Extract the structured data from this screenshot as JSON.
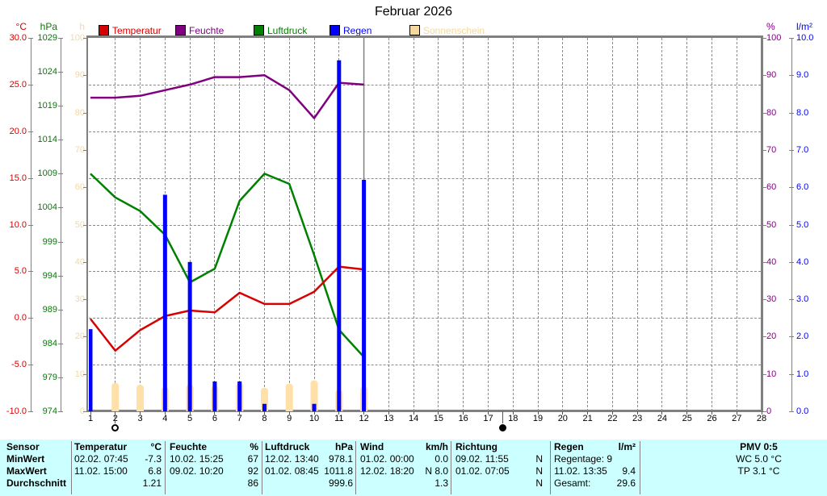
{
  "title": "Februar 2026",
  "legend": [
    {
      "label": "Temperatur",
      "color": "#d80000"
    },
    {
      "label": "Feuchte",
      "color": "#800080"
    },
    {
      "label": "Luftdruck",
      "color": "#008000"
    },
    {
      "label": "Regen",
      "color": "#0000ff"
    },
    {
      "label": "Sonnenschein",
      "color": "#f3d9a0"
    }
  ],
  "axes": {
    "temperature": {
      "header": "°C",
      "color": "#d80000",
      "ticks": [
        "30.0",
        "25.0",
        "20.0",
        "15.0",
        "10.0",
        "5.0",
        "0.0",
        "-5.0",
        "-10.0"
      ]
    },
    "pressure": {
      "header": "hPa",
      "color": "#008000",
      "ticks": [
        "1029",
        "1024",
        "1019",
        "1014",
        "1009",
        "1004",
        "999",
        "994",
        "989",
        "984",
        "979",
        "974"
      ]
    },
    "sunshine": {
      "header": "h",
      "color": "#f3d9a0",
      "ticks": [
        "100",
        "90",
        "80",
        "70",
        "60",
        "50",
        "40",
        "30",
        "20",
        "10",
        "0"
      ]
    },
    "humidity": {
      "header": "%",
      "color": "#800080",
      "ticks": [
        "100",
        "90",
        "80",
        "70",
        "60",
        "50",
        "40",
        "30",
        "20",
        "10",
        "0"
      ]
    },
    "rain": {
      "header": "l/m²",
      "color": "#0000ff",
      "ticks": [
        "10.0",
        "9.0",
        "8.0",
        "7.0",
        "6.0",
        "5.0",
        "4.0",
        "3.0",
        "2.0",
        "1.0",
        "0.0"
      ]
    }
  },
  "x_axis": {
    "days": [
      "1",
      "2",
      "3",
      "4",
      "5",
      "6",
      "7",
      "8",
      "9",
      "10",
      "11",
      "12",
      "13",
      "14",
      "15",
      "16",
      "17",
      "18",
      "19",
      "20",
      "21",
      "22",
      "23",
      "24",
      "25",
      "26",
      "27",
      "28"
    ]
  },
  "moon_markers": [
    {
      "day": 2,
      "phase": "full-moon"
    },
    {
      "day": 17.6,
      "phase": "new-moon"
    }
  ],
  "chart_data": {
    "type": "line+bar",
    "title": "Februar 2026",
    "x_range": [
      1,
      28
    ],
    "days_with_data": [
      1,
      2,
      3,
      4,
      5,
      6,
      7,
      8,
      9,
      10,
      11,
      12
    ],
    "current_day_marker": 12,
    "grid": {
      "horizontal_lines_celsius": [
        25,
        20,
        15,
        10,
        5,
        0,
        -5
      ],
      "vertical_lines": "every day",
      "style": "dashed gray"
    },
    "series": [
      {
        "name": "Sonnenschein",
        "type": "bar",
        "unit": "h",
        "color": "#ffe0a8",
        "axis_min": 0,
        "axis_max": 100,
        "values": [
          0,
          7.6,
          7.1,
          6.5,
          7.2,
          6.8,
          7.6,
          6.3,
          7.4,
          8.3,
          5.8,
          6.6
        ]
      },
      {
        "name": "Luftdruck",
        "type": "line",
        "unit": "hPa",
        "color": "#008000",
        "axis_min": 974,
        "axis_max": 1029,
        "values": [
          1009,
          1005.5,
          1003.5,
          1000,
          993,
          995,
          1005,
          1009,
          1007.5,
          997,
          986,
          982
        ]
      },
      {
        "name": "Feuchte",
        "type": "line",
        "unit": "%",
        "color": "#800080",
        "axis_min": 0,
        "axis_max": 100,
        "values": [
          84,
          84,
          84.5,
          86,
          87.5,
          89.5,
          89.5,
          90,
          86,
          78.5,
          88,
          87.5
        ]
      },
      {
        "name": "Temperatur",
        "type": "line",
        "unit": "°C",
        "color": "#d80000",
        "axis_min": -10,
        "axis_max": 30,
        "values": [
          -0.1,
          -3.5,
          -1.3,
          0.2,
          0.8,
          0.6,
          2.7,
          1.5,
          1.5,
          2.8,
          5.5,
          5.2
        ]
      },
      {
        "name": "Regen",
        "type": "bar",
        "unit": "l/m²",
        "color": "#0000ff",
        "axis_min": 0,
        "axis_max": 10,
        "values": [
          2.2,
          0,
          0,
          5.8,
          4.0,
          0.8,
          0.8,
          0.2,
          0,
          0.2,
          9.4,
          6.2
        ]
      }
    ]
  },
  "table": {
    "background": "#ccffff",
    "row_headers": [
      "Sensor",
      "MinWert",
      "MaxWert",
      "Durchschnitt"
    ],
    "columns": [
      {
        "name": "Temperatur",
        "unit": "°C",
        "rows": [
          {
            "left": "02.02.  07:45",
            "right": "-7.3"
          },
          {
            "left": "11.02.  15:00",
            "right": "6.8"
          },
          {
            "left": "",
            "right": "1.21"
          }
        ]
      },
      {
        "name": "Feuchte",
        "unit": "%",
        "rows": [
          {
            "left": "10.02.  15:25",
            "right": "67"
          },
          {
            "left": "09.02.  10:20",
            "right": "92"
          },
          {
            "left": "",
            "right": "86"
          }
        ]
      },
      {
        "name": "Luftdruck",
        "unit": "hPa",
        "rows": [
          {
            "left": "12.02.  13:40",
            "right": "978.1"
          },
          {
            "left": "01.02.  08:45",
            "right": "1011.8"
          },
          {
            "left": "",
            "right": "999.6"
          }
        ]
      },
      {
        "name": "Wind",
        "unit": "km/h",
        "rows": [
          {
            "left": "01.02.  00:00",
            "right": "0.0"
          },
          {
            "left": "12.02.  18:20",
            "right": "N 8.0"
          },
          {
            "left": "",
            "right": "1.3"
          }
        ]
      },
      {
        "name": "Richtung",
        "unit": "",
        "rows": [
          {
            "left": "09.02.  11:55",
            "right": "N"
          },
          {
            "left": "01.02.  07:05",
            "right": "N"
          },
          {
            "left": "",
            "right": "N"
          }
        ]
      },
      {
        "name": "Regen",
        "unit": "l/m²",
        "rows": [
          {
            "left": "Regentage: 9",
            "right": ""
          },
          {
            "left": "11.02.  13:35",
            "right": "9.4"
          },
          {
            "left": "Gesamt:",
            "right": "29.6"
          }
        ]
      },
      {
        "name": "PMV 0:5",
        "unit": "",
        "align": "center",
        "rows": [
          {
            "left": "WC 5.0 °C",
            "right": ""
          },
          {
            "left": "TP 3.1 °C",
            "right": ""
          },
          {
            "left": "",
            "right": ""
          }
        ]
      }
    ]
  }
}
